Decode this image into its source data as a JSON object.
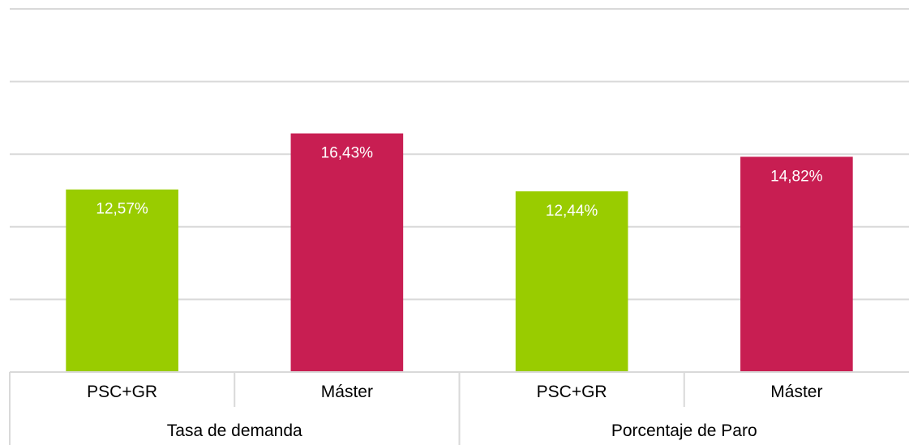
{
  "chart_data": {
    "type": "bar",
    "groups": [
      {
        "label": "Tasa de demanda",
        "bars": [
          {
            "category": "PSC+GR",
            "value": 12.57,
            "label": "12,57%",
            "color": "#99cc00"
          },
          {
            "category": "Máster",
            "value": 16.43,
            "label": "16,43%",
            "color": "#c81e52"
          }
        ]
      },
      {
        "label": "Porcentaje de Paro",
        "bars": [
          {
            "category": "PSC+GR",
            "value": 12.44,
            "label": "12,44%",
            "color": "#99cc00"
          },
          {
            "category": "Máster",
            "value": 14.82,
            "label": "14,82%",
            "color": "#c81e52"
          }
        ]
      }
    ],
    "ylim": [
      0,
      25
    ],
    "yticks": [
      0,
      5,
      10,
      15,
      20,
      25
    ],
    "grid": true,
    "legend": "none"
  }
}
